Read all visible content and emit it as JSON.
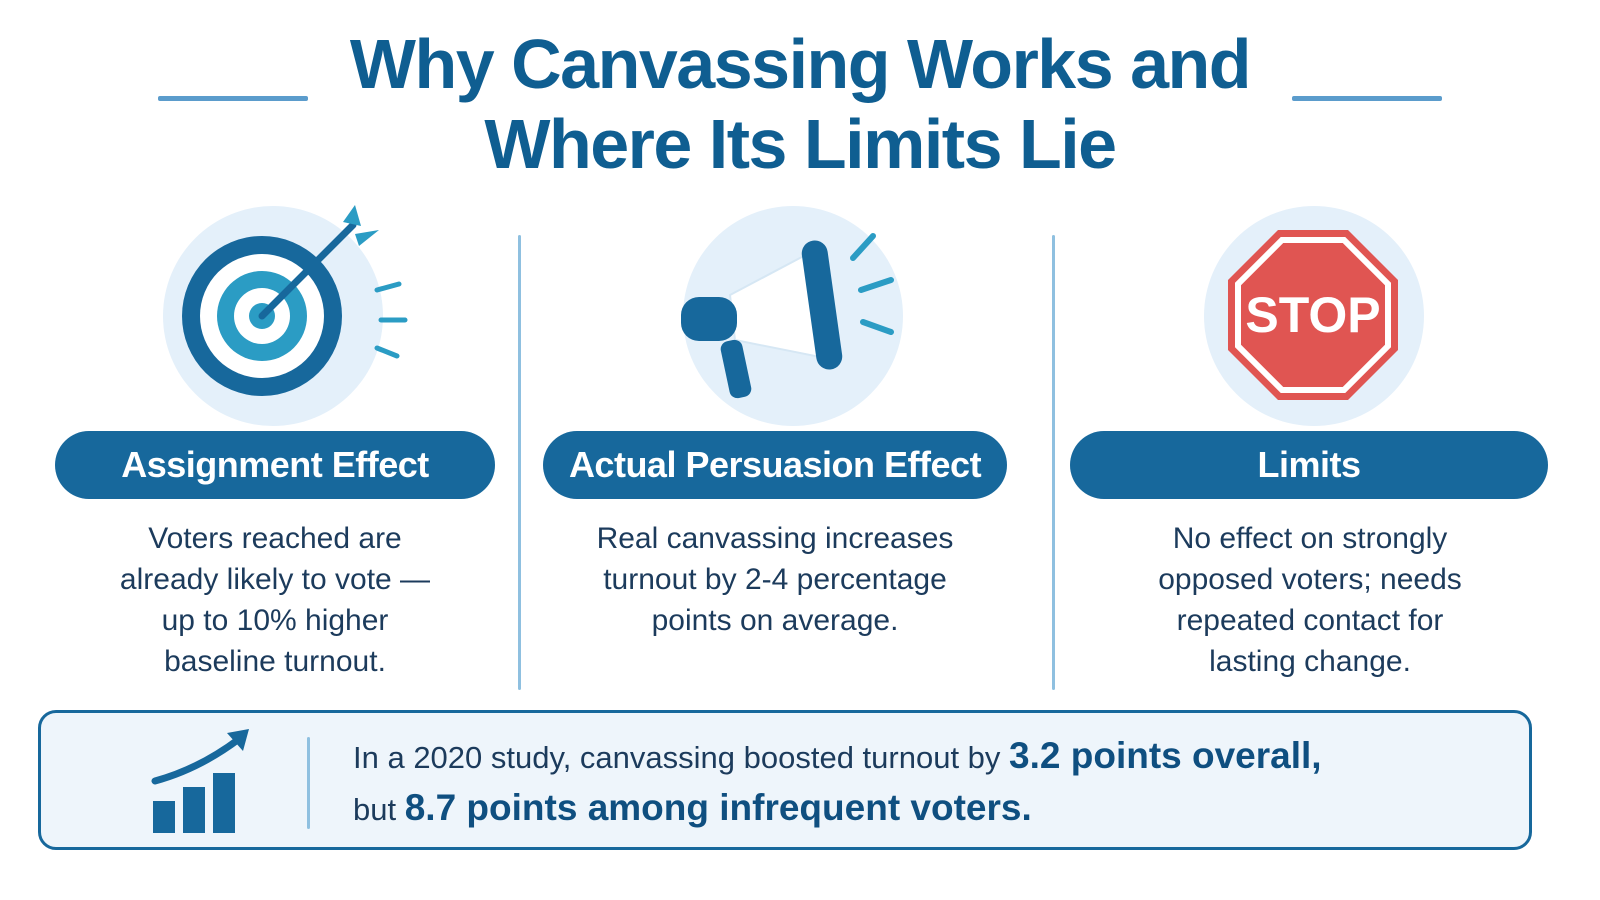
{
  "title": {
    "line1": "Why Canvassing Works and",
    "line2": "Where Its Limits Lie"
  },
  "columns": [
    {
      "icon": "target-icon",
      "heading": "Assignment Effect",
      "lines": [
        "Voters reached are",
        "already likely to vote —",
        "up to 10% higher",
        "baseline turnout."
      ]
    },
    {
      "icon": "megaphone-icon",
      "heading": "Actual Persuasion Effect",
      "lines": [
        "Real canvassing increases",
        "turnout by 2-4 percentage",
        "points on average."
      ]
    },
    {
      "icon": "stop-sign-icon",
      "icon_text": "STOP",
      "heading": "Limits",
      "lines": [
        "No effect on strongly",
        "opposed voters; needs",
        "repeated contact for",
        "lasting change."
      ]
    }
  ],
  "stat": {
    "icon": "growth-chart-icon",
    "part1": "In a 2020 study, canvassing boosted turnout by ",
    "highlight1": "3.2 points overall,",
    "part2": "but ",
    "highlight2": "8.7 points among infrequent voters."
  },
  "colors": {
    "primary": "#17689c",
    "title": "#0f5e91",
    "accent": "#2b9cc4",
    "stop_red": "#e05552",
    "light_blue": "#e4f0fa"
  }
}
